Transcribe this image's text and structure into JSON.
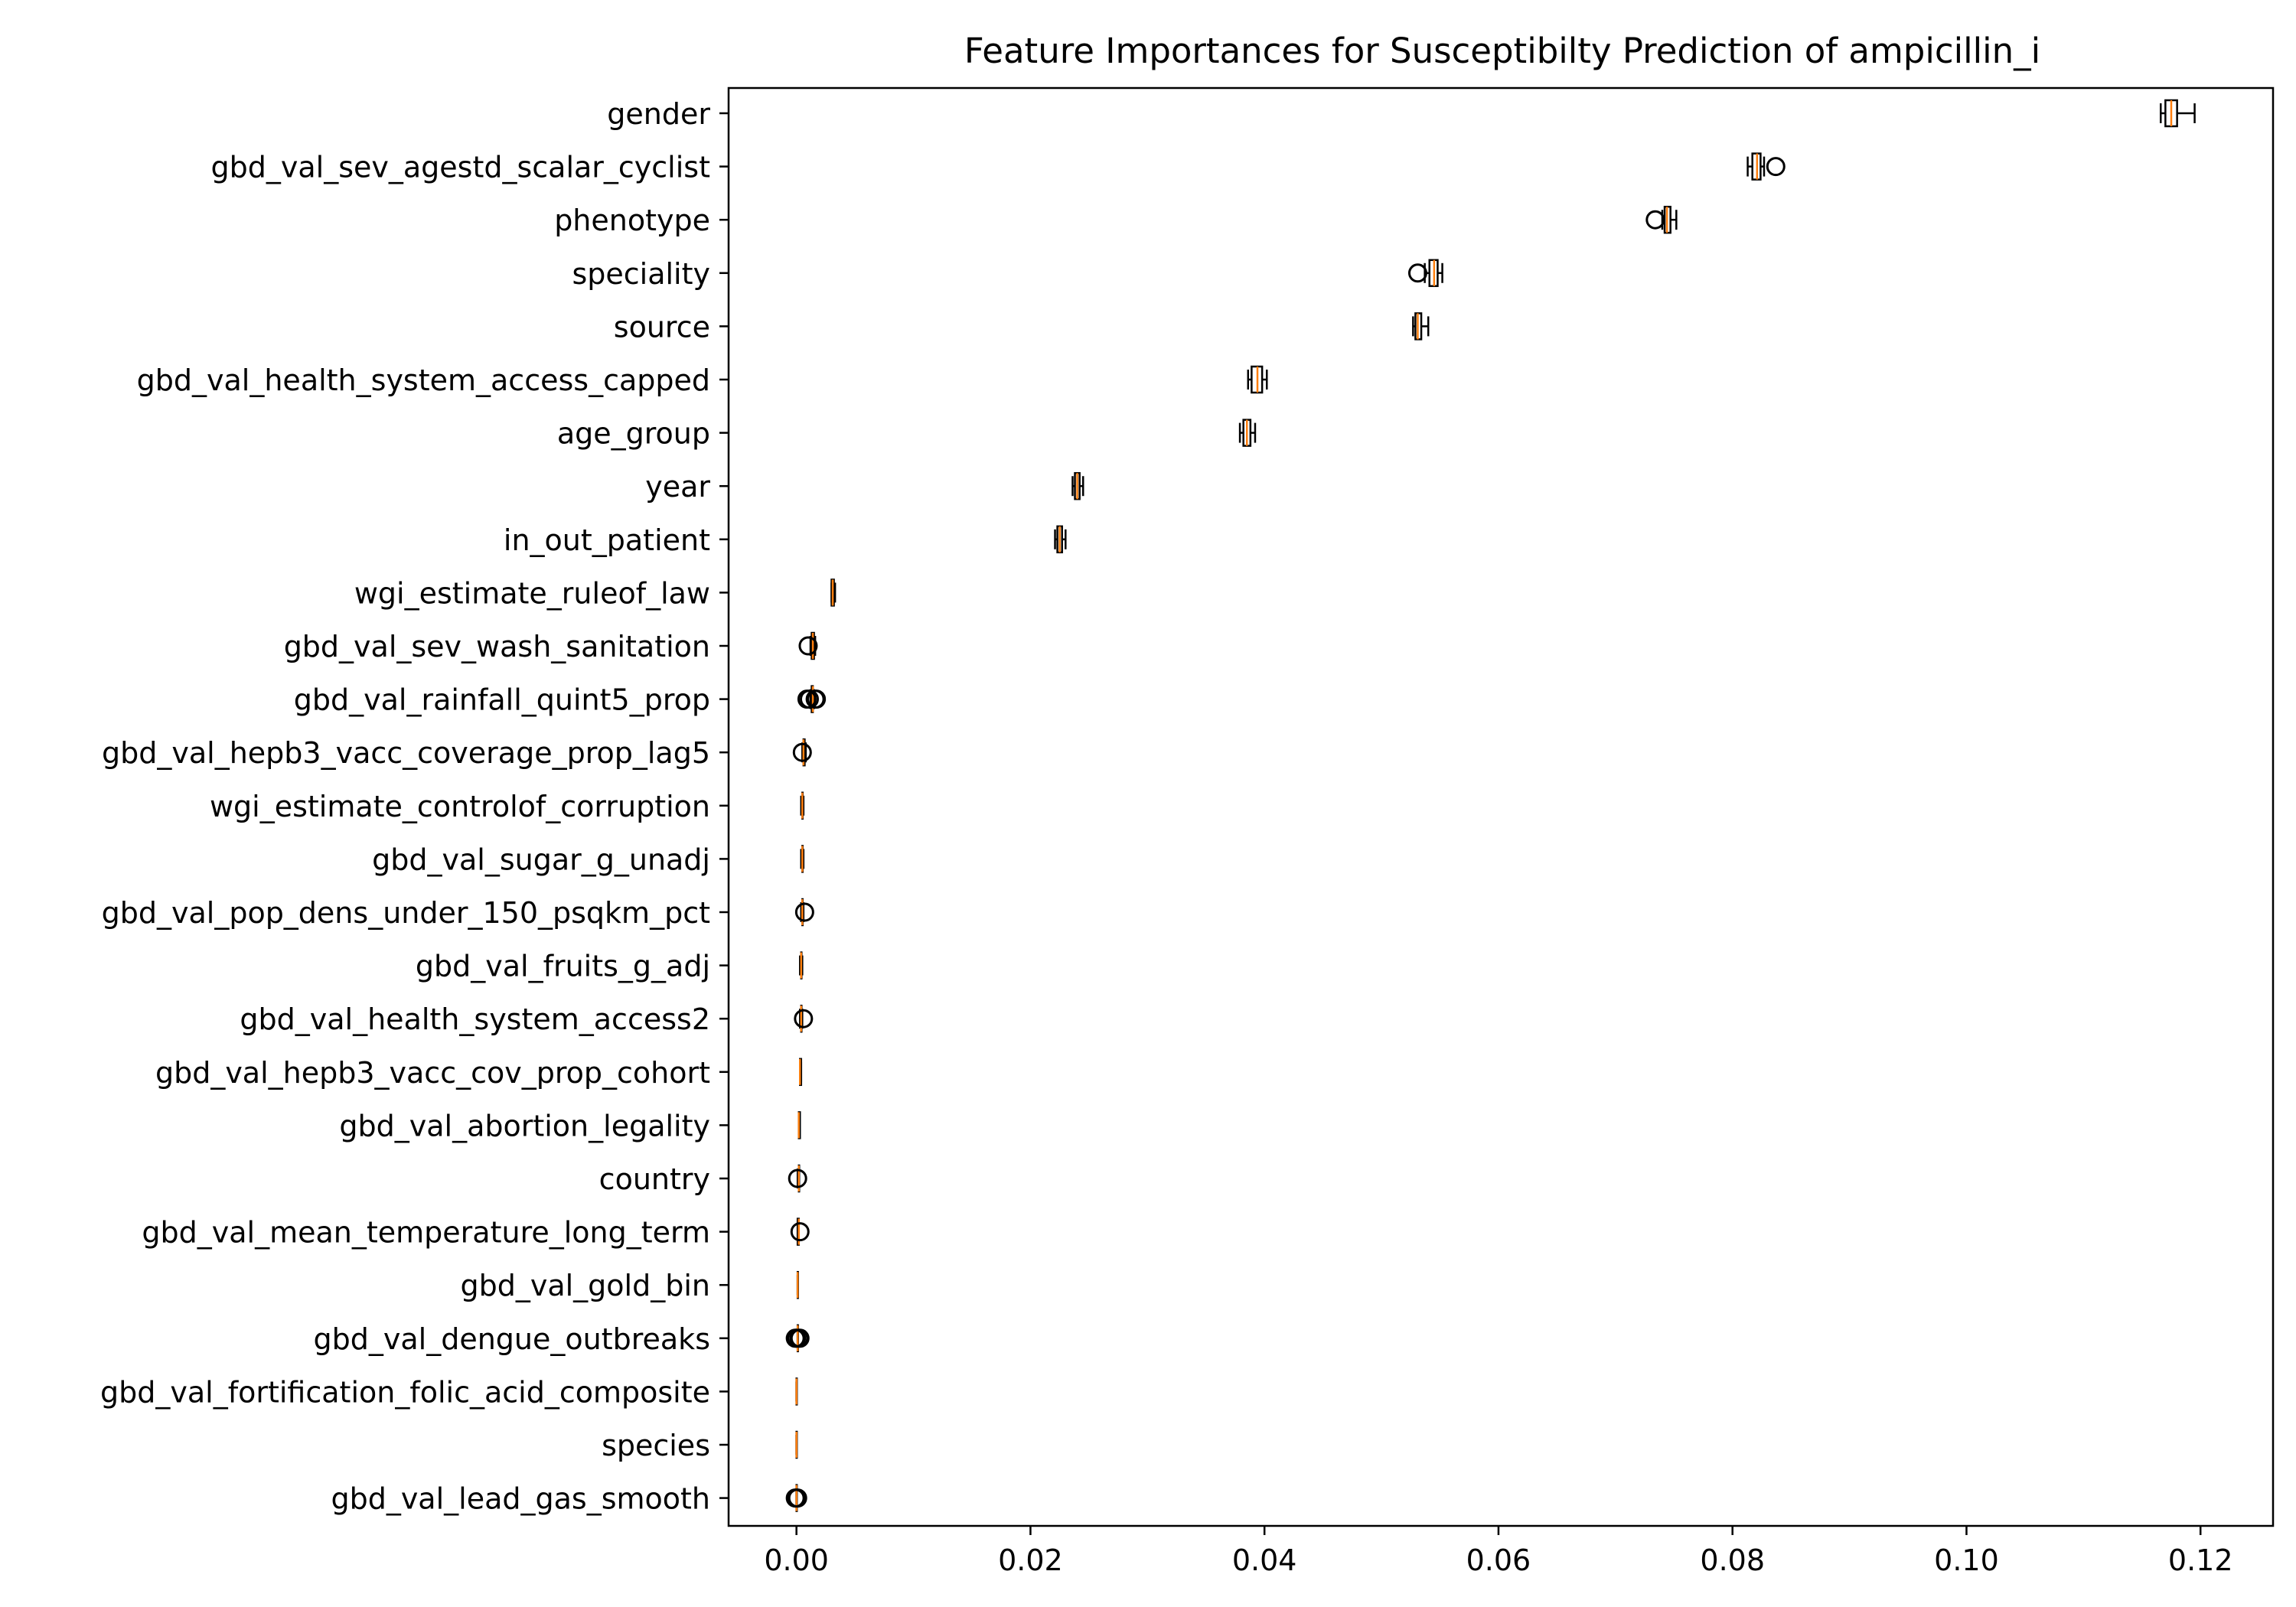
{
  "chart_data": {
    "type": "boxplot",
    "orientation": "horizontal",
    "title": "Feature Importances for Susceptibilty Prediction of ampicillin_i",
    "xlabel": "",
    "ylabel": "",
    "xlim": [
      -0.0058,
      0.1262
    ],
    "xticks": [
      0.0,
      0.02,
      0.04,
      0.06,
      0.08,
      0.1,
      0.12
    ],
    "xtick_labels": [
      "0.00",
      "0.02",
      "0.04",
      "0.06",
      "0.08",
      "0.10",
      "0.12"
    ],
    "grid": false,
    "colors": {
      "median": "#ff7f0e",
      "box_edge": "#000000",
      "box_fill": "#ffffff"
    },
    "features": [
      {
        "name": "gender",
        "whislo": 0.1166,
        "q1": 0.117,
        "med": 0.1175,
        "q3": 0.118,
        "whishi": 0.1195,
        "fliers": []
      },
      {
        "name": "gbd_val_sev_agestd_scalar_cyclist",
        "whislo": 0.0813,
        "q1": 0.0817,
        "med": 0.0821,
        "q3": 0.0824,
        "whishi": 0.0827,
        "fliers": [
          0.0837
        ]
      },
      {
        "name": "phenotype",
        "whislo": 0.074,
        "q1": 0.0742,
        "med": 0.0744,
        "q3": 0.0747,
        "whishi": 0.0752,
        "fliers": [
          0.0734
        ]
      },
      {
        "name": "speciality",
        "whislo": 0.0537,
        "q1": 0.0541,
        "med": 0.0545,
        "q3": 0.0548,
        "whishi": 0.0552,
        "fliers": [
          0.0531
        ]
      },
      {
        "name": "source",
        "whislo": 0.0527,
        "q1": 0.0529,
        "med": 0.0531,
        "q3": 0.0534,
        "whishi": 0.054,
        "fliers": []
      },
      {
        "name": "gbd_val_health_system_access_capped",
        "whislo": 0.0386,
        "q1": 0.0389,
        "med": 0.0394,
        "q3": 0.0398,
        "whishi": 0.0402,
        "fliers": []
      },
      {
        "name": "age_group",
        "whislo": 0.0379,
        "q1": 0.0382,
        "med": 0.0385,
        "q3": 0.0388,
        "whishi": 0.0392,
        "fliers": []
      },
      {
        "name": "year",
        "whislo": 0.0236,
        "q1": 0.0238,
        "med": 0.024,
        "q3": 0.0242,
        "whishi": 0.0245,
        "fliers": []
      },
      {
        "name": "in_out_patient",
        "whislo": 0.0221,
        "q1": 0.0223,
        "med": 0.0225,
        "q3": 0.0227,
        "whishi": 0.023,
        "fliers": []
      },
      {
        "name": "wgi_estimate_ruleof_law",
        "whislo": 0.003,
        "q1": 0.003,
        "med": 0.0031,
        "q3": 0.0032,
        "whishi": 0.0033,
        "fliers": []
      },
      {
        "name": "gbd_val_sev_wash_sanitation",
        "whislo": 0.0012,
        "q1": 0.0013,
        "med": 0.0014,
        "q3": 0.0015,
        "whishi": 0.0016,
        "fliers": [
          0.001
        ]
      },
      {
        "name": "gbd_val_rainfall_quint5_prop",
        "whislo": 0.0012,
        "q1": 0.0013,
        "med": 0.0014,
        "q3": 0.0014,
        "whishi": 0.0015,
        "fliers": [
          0.0009,
          0.0011,
          0.0016,
          0.0017
        ]
      },
      {
        "name": "gbd_val_hepb3_vacc_coverage_prop_lag5",
        "whislo": 0.0005,
        "q1": 0.0006,
        "med": 0.0006,
        "q3": 0.0007,
        "whishi": 0.0008,
        "fliers": [
          0.0005
        ]
      },
      {
        "name": "wgi_estimate_controlof_corruption",
        "whislo": 0.0004,
        "q1": 0.0005,
        "med": 0.0005,
        "q3": 0.0005,
        "whishi": 0.0006,
        "fliers": []
      },
      {
        "name": "gbd_val_sugar_g_unadj",
        "whislo": 0.0004,
        "q1": 0.0005,
        "med": 0.0005,
        "q3": 0.0005,
        "whishi": 0.0006,
        "fliers": []
      },
      {
        "name": "gbd_val_pop_dens_under_150_psqkm_pct",
        "whislo": 0.0004,
        "q1": 0.0005,
        "med": 0.0005,
        "q3": 0.0005,
        "whishi": 0.0006,
        "fliers": [
          0.0007
        ]
      },
      {
        "name": "gbd_val_fruits_g_adj",
        "whislo": 0.0003,
        "q1": 0.0004,
        "med": 0.0004,
        "q3": 0.0004,
        "whishi": 0.0005,
        "fliers": []
      },
      {
        "name": "gbd_val_health_system_access2",
        "whislo": 0.0003,
        "q1": 0.0004,
        "med": 0.0004,
        "q3": 0.0004,
        "whishi": 0.0005,
        "fliers": [
          0.0006
        ]
      },
      {
        "name": "gbd_val_hepb3_vacc_cov_prop_cohort",
        "whislo": 0.0003,
        "q1": 0.0003,
        "med": 0.0003,
        "q3": 0.0004,
        "whishi": 0.0004,
        "fliers": []
      },
      {
        "name": "gbd_val_abortion_legality",
        "whislo": 0.0002,
        "q1": 0.0002,
        "med": 0.0002,
        "q3": 0.0003,
        "whishi": 0.0003,
        "fliers": []
      },
      {
        "name": "country",
        "whislo": 0.0001,
        "q1": 0.0002,
        "med": 0.0002,
        "q3": 0.0002,
        "whishi": 0.0002,
        "fliers": [
          0.0001
        ]
      },
      {
        "name": "gbd_val_mean_temperature_long_term",
        "whislo": 0.0001,
        "q1": 0.0001,
        "med": 0.0002,
        "q3": 0.0002,
        "whishi": 0.0002,
        "fliers": [
          0.0003
        ]
      },
      {
        "name": "gbd_val_gold_bin",
        "whislo": 0.0001,
        "q1": 0.0001,
        "med": 0.0001,
        "q3": 0.0001,
        "whishi": 0.0001,
        "fliers": []
      },
      {
        "name": "gbd_val_dengue_outbreaks",
        "whislo": 0.0001,
        "q1": 0.0001,
        "med": 0.0001,
        "q3": 0.0001,
        "whishi": 0.0001,
        "fliers": [
          -0.0001,
          0.0,
          0.0002,
          0.0003
        ]
      },
      {
        "name": "gbd_val_fortification_folic_acid_composite",
        "whislo": 0.0,
        "q1": 0.0,
        "med": 0.0,
        "q3": 0.0,
        "whishi": 0.0,
        "fliers": []
      },
      {
        "name": "species",
        "whislo": 0.0,
        "q1": 0.0,
        "med": 0.0,
        "q3": 0.0,
        "whishi": 0.0,
        "fliers": []
      },
      {
        "name": "gbd_val_lead_gas_smooth",
        "whislo": 0.0,
        "q1": 0.0,
        "med": 0.0,
        "q3": 0.0,
        "whishi": 0.0,
        "fliers": [
          -0.0001,
          0.0,
          0.0001
        ]
      }
    ]
  }
}
